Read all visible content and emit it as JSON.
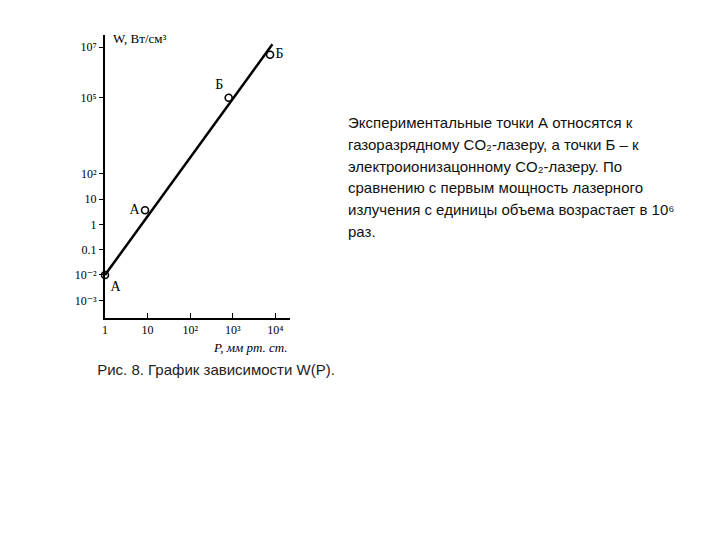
{
  "chart_data": {
    "type": "scatter",
    "title": "Рис. 8. График зависимости W(P).",
    "x_label": "P, мм рт. ст.",
    "y_label": "W, Вт/см³",
    "log": true,
    "grid": false,
    "series": [
      {
        "name": "А",
        "type": "scatter",
        "marker": "open circle",
        "color": "#000000",
        "x": [
          1,
          8.7
        ],
        "values": [
          0.01,
          3.6
        ]
      },
      {
        "name": "Б",
        "type": "scatter",
        "marker": "open circle",
        "color": "#000000",
        "x": [
          800,
          7500
        ],
        "values": [
          100000,
          5000000
        ]
      },
      {
        "type": "line",
        "line_style": "solid",
        "color": "#000000",
        "x": [
          1,
          8500
        ],
        "values": [
          0.01,
          13000000
        ]
      }
    ],
    "xlim": [
      1,
      22000
    ],
    "xticks": [
      1,
      10,
      {
        "value": 100,
        "label": "10²"
      },
      {
        "value": 1000,
        "label": "10³"
      },
      {
        "value": 10000,
        "label": "10⁴"
      }
    ],
    "ylim": [
      0.0002,
      30000000
    ],
    "yticks": [
      {
        "value": 0.001,
        "label": "10⁻³"
      },
      {
        "value": 0.01,
        "label": "10⁻²"
      },
      0.1,
      1,
      10,
      {
        "value": 100,
        "label": "10²"
      },
      {
        "value": 100000,
        "label": "10⁵"
      },
      {
        "value": 10000000,
        "label": "10⁷"
      }
    ]
  },
  "description": "Экспериментальные точки А относятся к газоразрядному CO₂-лазеру, а точки Б – к электроионизацонному CO₂-лазеру. По сравнению с первым мощность лазерного излучения с единицы объема возрастает в 10⁶ раз."
}
